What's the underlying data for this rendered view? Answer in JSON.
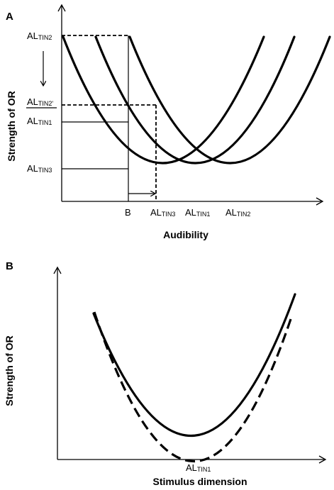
{
  "panel_a": {
    "letter": "A",
    "y_axis_title": "Strength of OR",
    "x_axis_title": "Audibility",
    "y_labels": {
      "tin2": {
        "main": "AL",
        "sub": "TIN2"
      },
      "tin2p": {
        "main": "AL",
        "sub": "TIN2'"
      },
      "tin1": {
        "main": "AL",
        "sub": "TIN1"
      },
      "tin3": {
        "main": "AL",
        "sub": "TIN3"
      }
    },
    "x_labels": {
      "b": {
        "main": "B",
        "sub": ""
      },
      "tin3": {
        "main": "AL",
        "sub": "TIN3"
      },
      "tin1": {
        "main": "AL",
        "sub": "TIN1"
      },
      "tin2": {
        "main": "AL",
        "sub": "TIN2"
      }
    }
  },
  "panel_b": {
    "letter": "B",
    "y_axis_title": "Strength of OR",
    "x_axis_title": "Stimulus dimension",
    "x_label": {
      "main": "AL",
      "sub": "TIN1"
    }
  }
}
